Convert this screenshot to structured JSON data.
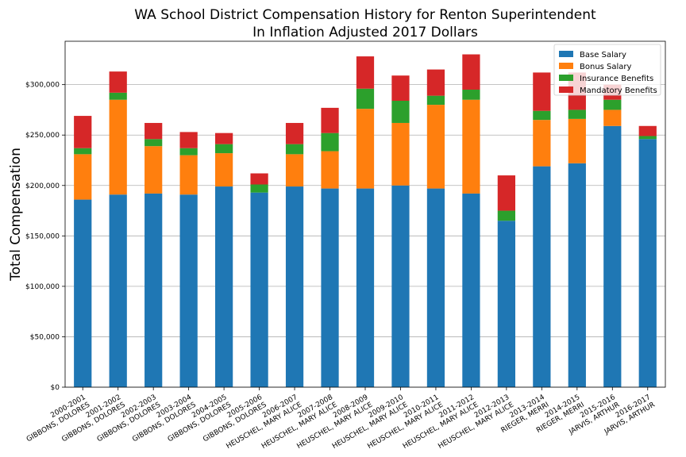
{
  "chart_data": {
    "type": "bar",
    "stacked": true,
    "title": "WA School District Compensation History for Renton Superintendent",
    "subtitle": "In Inflation Adjusted 2017 Dollars",
    "xlabel": "",
    "ylabel": "Total Compensation",
    "ylim": [
      0,
      343000
    ],
    "yticks": [
      {
        "value": 0,
        "label": "$0"
      },
      {
        "value": 50000,
        "label": "$50,000"
      },
      {
        "value": 100000,
        "label": "$100,000"
      },
      {
        "value": 150000,
        "label": "$150,000"
      },
      {
        "value": 200000,
        "label": "$200,000"
      },
      {
        "value": 250000,
        "label": "$250,000"
      },
      {
        "value": 300000,
        "label": "$300,000"
      }
    ],
    "grid": "horizontal",
    "legend_position": "top-right",
    "categories": [
      [
        "2000-2001",
        "GIBBONS, DOLORES"
      ],
      [
        "2001-2002",
        "GIBBONS, DOLORES"
      ],
      [
        "2002-2003",
        "GIBBONS, DOLORES"
      ],
      [
        "2003-2004",
        "GIBBONS, DOLORES"
      ],
      [
        "2004-2005",
        "GIBBONS, DOLORES"
      ],
      [
        "2005-2006",
        "GIBBONS, DOLORES"
      ],
      [
        "2006-2007",
        "HEUSCHEL, MARY ALICE"
      ],
      [
        "2007-2008",
        "HEUSCHEL, MARY ALICE"
      ],
      [
        "2008-2009",
        "HEUSCHEL, MARY ALICE"
      ],
      [
        "2009-2010",
        "HEUSCHEL, MARY ALICE"
      ],
      [
        "2010-2011",
        "HEUSCHEL, MARY ALICE"
      ],
      [
        "2011-2012",
        "HEUSCHEL, MARY ALICE"
      ],
      [
        "2012-2013",
        "HEUSCHEL, MARY ALICE"
      ],
      [
        "2013-2014",
        "RIEGER, MERRI"
      ],
      [
        "2014-2015",
        "RIEGER, MERRI"
      ],
      [
        "2015-2016",
        "JARVIS, ARTHUR"
      ],
      [
        "2016-2017",
        "JARVIS, ARTHUR"
      ]
    ],
    "series": [
      {
        "name": "Base Salary",
        "color": "#1f77b4",
        "values": [
          186000,
          191000,
          192000,
          191000,
          199000,
          193000,
          199000,
          197000,
          197000,
          200000,
          197000,
          192000,
          165000,
          219000,
          222000,
          259000,
          246000
        ]
      },
      {
        "name": "Bonus Salary",
        "color": "#ff7f0e",
        "values": [
          45000,
          94000,
          47000,
          39000,
          33000,
          0,
          32000,
          37000,
          79000,
          62000,
          83000,
          93000,
          0,
          46000,
          44000,
          16000,
          0
        ]
      },
      {
        "name": "Insurance Benefits",
        "color": "#2ca02c",
        "values": [
          6000,
          7000,
          7000,
          7000,
          9000,
          8000,
          10000,
          18000,
          20000,
          22000,
          9000,
          10000,
          10000,
          9000,
          9000,
          10000,
          3000
        ]
      },
      {
        "name": "Mandatory Benefits",
        "color": "#d62728",
        "values": [
          32000,
          21000,
          16000,
          16000,
          11000,
          11000,
          21000,
          25000,
          32000,
          25000,
          26000,
          35000,
          35000,
          38000,
          37000,
          15000,
          10000
        ]
      }
    ]
  }
}
